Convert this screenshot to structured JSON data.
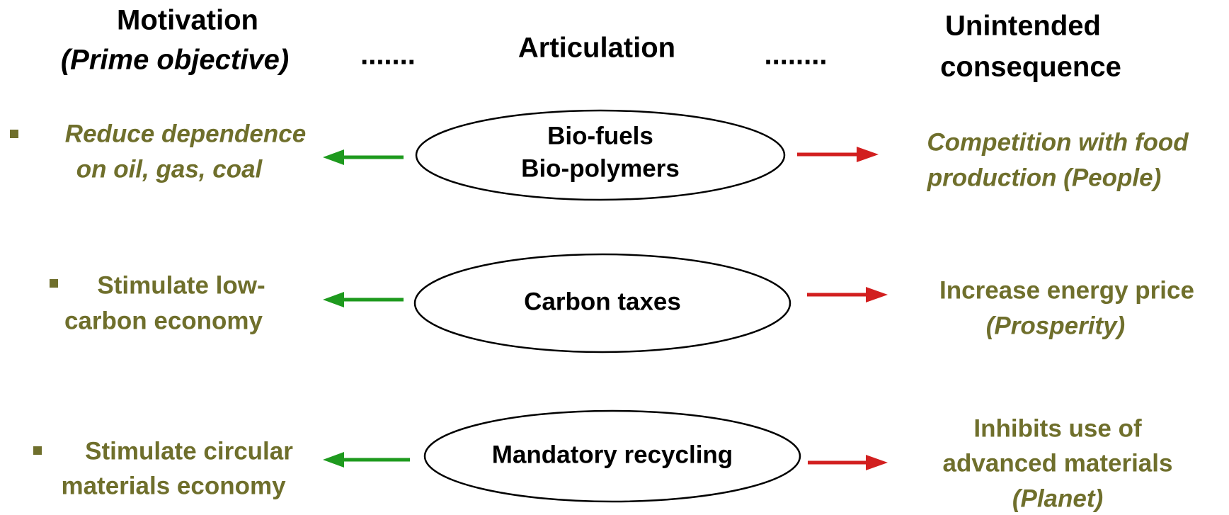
{
  "header": {
    "motivation": [
      "Motivation",
      "(Prime objective)"
    ],
    "separator_left": ".......",
    "articulation": "Articulation",
    "separator_right": "........",
    "consequence": [
      "Unintended",
      "consequence"
    ]
  },
  "rows": [
    {
      "motivation": [
        "Reduce dependence",
        "on oil, gas, coal"
      ],
      "articulation": [
        "Bio-fuels",
        "Bio-polymers"
      ],
      "consequence": [
        "Competition with food",
        "production (People)"
      ]
    },
    {
      "motivation": [
        "Stimulate low-",
        "carbon economy"
      ],
      "articulation": [
        "Carbon taxes"
      ],
      "consequence": [
        "Increase energy price",
        "(Prosperity)"
      ]
    },
    {
      "motivation": [
        "Stimulate circular",
        "materials economy"
      ],
      "articulation": [
        "Mandatory recycling"
      ],
      "consequence": [
        "Inhibits use of",
        "advanced materials",
        "(Planet)"
      ]
    }
  ]
}
